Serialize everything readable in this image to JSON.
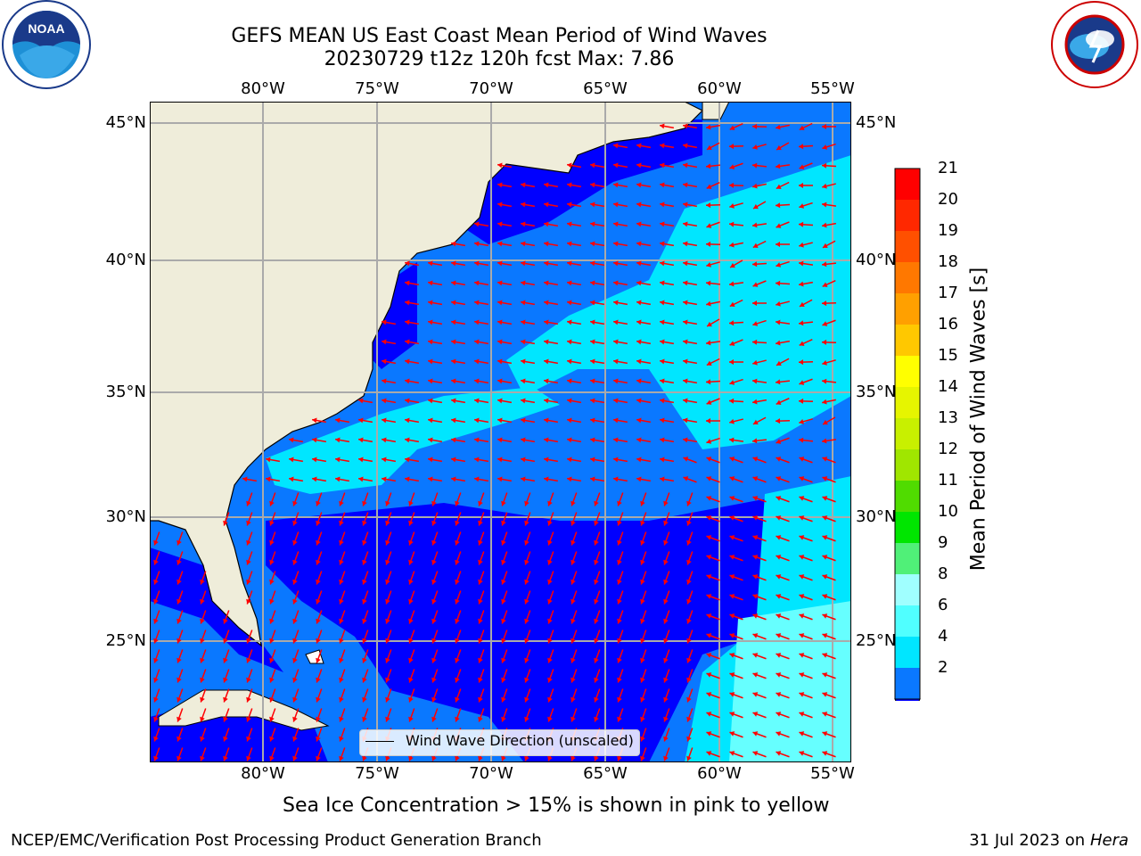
{
  "title": {
    "line1": "GEFS MEAN US East Coast Mean Period of Wind Waves",
    "line2": "20230729 t12z 120h fcst   Max: 7.86"
  },
  "map": {
    "lon_ticks": [
      "80°W",
      "75°W",
      "70°W",
      "65°W",
      "60°W",
      "55°W"
    ],
    "lat_ticks": [
      "45°N",
      "40°N",
      "35°N",
      "30°N",
      "25°N"
    ],
    "colors": {
      "land": "#efedda",
      "ocean_dark": "#0000ff",
      "ocean_mid": "#0a78ff",
      "ocean_light": "#00e6ff",
      "ocean_pale": "#66ffff",
      "arrow": "#ff0000",
      "grid": "#aaaaaa"
    },
    "legend_label": "Wind Wave Direction (unscaled)"
  },
  "colorbar": {
    "label": "Mean Period of Wind Waves [s]",
    "tick_labels": [
      "21",
      "20",
      "19",
      "18",
      "17",
      "16",
      "15",
      "14",
      "13",
      "12",
      "11",
      "10",
      "9",
      "8",
      "6",
      "4",
      "2"
    ],
    "colors": [
      "#ff0000",
      "#ff2800",
      "#ff5000",
      "#ff7800",
      "#ffa000",
      "#ffc800",
      "#ffff00",
      "#e6f500",
      "#c8f000",
      "#a0e600",
      "#50dc00",
      "#00e600",
      "#50f078",
      "#a0ffff",
      "#50ffff",
      "#00e6ff",
      "#0a78ff"
    ]
  },
  "note": "Sea Ice Concentration > 15% is shown in pink to yellow",
  "footer": {
    "left": "NCEP/EMC/Verification Post Processing Product Generation Branch",
    "right_date": "31 Jul 2023 on ",
    "right_host": "Hera"
  },
  "logos": {
    "noaa_text": "NOAA",
    "nws_text": "NATIONAL WEATHER SERVICE"
  }
}
